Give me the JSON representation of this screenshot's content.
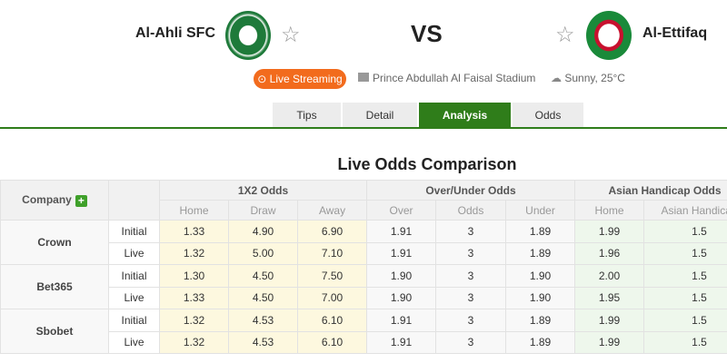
{
  "match": {
    "home": "Al-Ahli SFC",
    "away": "Al-Ettifaq",
    "vs": "VS",
    "live_label": "Live Streaming",
    "stadium": "Prince Abdullah Al Faisal Stadium",
    "weather": "Sunny, 25°C"
  },
  "tabs": [
    "Tips",
    "Detail",
    "Analysis",
    "Odds"
  ],
  "active_tab": "Analysis",
  "title": "Live Odds Comparison",
  "table": {
    "company_header": "Company",
    "groups": [
      "1X2 Odds",
      "Over/Under Odds",
      "Asian Handicap Odds"
    ],
    "subheaders": [
      "Home",
      "Draw",
      "Away",
      "Over",
      "Odds",
      "Under",
      "Home",
      "Asian Handicap"
    ],
    "companies": [
      {
        "name": "Crown",
        "rows": [
          {
            "type": "Initial",
            "values": [
              "1.33",
              "4.90",
              "6.90",
              "1.91",
              "3",
              "1.89",
              "1.99",
              "1.5"
            ]
          },
          {
            "type": "Live",
            "values": [
              "1.32",
              "5.00",
              "7.10",
              "1.91",
              "3",
              "1.89",
              "1.96",
              "1.5"
            ]
          }
        ]
      },
      {
        "name": "Bet365",
        "rows": [
          {
            "type": "Initial",
            "values": [
              "1.30",
              "4.50",
              "7.50",
              "1.90",
              "3",
              "1.90",
              "2.00",
              "1.5"
            ]
          },
          {
            "type": "Live",
            "values": [
              "1.33",
              "4.50",
              "7.00",
              "1.90",
              "3",
              "1.90",
              "1.95",
              "1.5"
            ]
          }
        ]
      },
      {
        "name": "Sbobet",
        "rows": [
          {
            "type": "Initial",
            "values": [
              "1.32",
              "4.53",
              "6.10",
              "1.91",
              "3",
              "1.89",
              "1.99",
              "1.5"
            ]
          },
          {
            "type": "Live",
            "values": [
              "1.32",
              "4.53",
              "6.10",
              "1.91",
              "3",
              "1.89",
              "1.99",
              "1.5"
            ]
          }
        ]
      }
    ]
  },
  "colors": {
    "accent": "#2f7d1a",
    "live": "#f26b1d"
  }
}
